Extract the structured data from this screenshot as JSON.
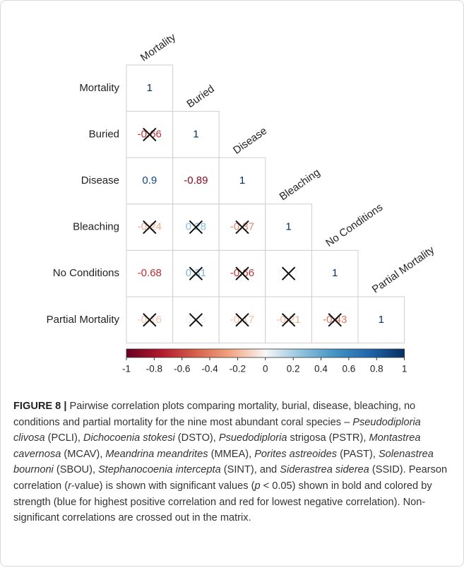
{
  "chart_data": {
    "type": "correlogram",
    "labels": [
      "Mortality",
      "Buried",
      "Disease",
      "Bleaching",
      "No Conditions",
      "Partial Mortality"
    ],
    "values": [
      [
        1
      ],
      [
        -0.66,
        1
      ],
      [
        0.9,
        -0.89,
        1
      ],
      [
        -0.24,
        0.28,
        -0.37,
        1
      ],
      [
        -0.68,
        0.31,
        -0.66,
        0.01,
        1
      ],
      [
        -0.16,
        0.03,
        -0.17,
        -0.21,
        -0.43,
        1
      ]
    ],
    "significant": [
      [
        true
      ],
      [
        false,
        true
      ],
      [
        true,
        true,
        true
      ],
      [
        false,
        false,
        false,
        true
      ],
      [
        true,
        false,
        false,
        false,
        true
      ],
      [
        false,
        false,
        false,
        false,
        false,
        true
      ]
    ],
    "colormap": [
      "#67001f",
      "#b2182b",
      "#d6604d",
      "#f4a582",
      "#f7f7f7",
      "#92c5de",
      "#4393c3",
      "#2166ac",
      "#053061"
    ],
    "clim": [
      -1,
      1
    ],
    "cticks": [
      -1,
      -0.8,
      -0.6,
      -0.4,
      -0.2,
      0,
      0.2,
      0.4,
      0.6,
      0.8,
      1
    ]
  },
  "caption": {
    "label": "FIGURE 8 |",
    "runs": [
      {
        "text": " Pairwise correlation plots comparing mortality, burial, disease, bleaching, no conditions and partial mortality for the nine most abundant coral species – "
      },
      {
        "text": "Pseudodiploria clivosa",
        "italic": true
      },
      {
        "text": " (PCLI), "
      },
      {
        "text": "Dichocoenia stokesi",
        "italic": true
      },
      {
        "text": " (DSTO), "
      },
      {
        "text": "Psuedodiploria",
        "italic": true
      },
      {
        "text": " strigosa (PSTR), "
      },
      {
        "text": "Montastrea cavernosa",
        "italic": true
      },
      {
        "text": " (MCAV), "
      },
      {
        "text": "Meandrina meandrites",
        "italic": true
      },
      {
        "text": " (MMEA), "
      },
      {
        "text": "Porites astreoides",
        "italic": true
      },
      {
        "text": " (PAST), "
      },
      {
        "text": "Solenastrea bournoni",
        "italic": true
      },
      {
        "text": " (SBOU), "
      },
      {
        "text": "Stephanocoenia intercepta",
        "italic": true
      },
      {
        "text": " (SINT), and "
      },
      {
        "text": "Siderastrea siderea",
        "italic": true
      },
      {
        "text": " (SSID). Pearson correlation ("
      },
      {
        "text": "r",
        "italic": true
      },
      {
        "text": "-value) is shown with significant values ("
      },
      {
        "text": "p",
        "italic": true
      },
      {
        "text": " < 0.05) shown in bold and colored by strength (blue for highest positive correlation and red for lowest negative correlation). Non-significant correlations are crossed out in the matrix."
      }
    ]
  }
}
